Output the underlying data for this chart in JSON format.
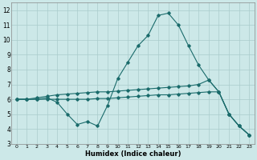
{
  "xlabel": "Humidex (Indice chaleur)",
  "xlim": [
    -0.5,
    23.5
  ],
  "ylim": [
    3,
    12.5
  ],
  "yticks": [
    3,
    4,
    5,
    6,
    7,
    8,
    9,
    10,
    11,
    12
  ],
  "xticks": [
    0,
    1,
    2,
    3,
    4,
    5,
    6,
    7,
    8,
    9,
    10,
    11,
    12,
    13,
    14,
    15,
    16,
    17,
    18,
    19,
    20,
    21,
    22,
    23
  ],
  "background_color": "#cce8e8",
  "grid_color": "#aacccc",
  "line_color": "#1a6b6b",
  "series1_x": [
    0,
    1,
    2,
    3,
    4,
    5,
    6,
    7,
    8,
    9,
    10,
    11,
    12,
    13,
    14,
    15,
    16,
    17,
    18,
    19,
    20,
    21,
    22,
    23
  ],
  "series1_y": [
    6.0,
    6.0,
    6.0,
    6.1,
    5.8,
    5.0,
    4.3,
    4.5,
    4.2,
    5.6,
    7.4,
    8.5,
    9.6,
    10.3,
    11.65,
    11.8,
    11.0,
    9.6,
    8.3,
    7.3,
    6.5,
    5.0,
    4.2,
    3.6
  ],
  "series2_x": [
    0,
    1,
    2,
    3,
    4,
    5,
    6,
    7,
    8,
    9,
    10,
    11,
    12,
    13,
    14,
    15,
    16,
    17,
    18,
    19,
    20,
    21,
    22,
    23
  ],
  "series2_y": [
    6.0,
    6.0,
    6.1,
    6.2,
    6.3,
    6.35,
    6.4,
    6.45,
    6.5,
    6.5,
    6.55,
    6.6,
    6.65,
    6.7,
    6.75,
    6.8,
    6.85,
    6.9,
    7.0,
    7.3,
    6.5,
    5.0,
    4.2,
    3.6
  ],
  "series3_x": [
    0,
    1,
    2,
    3,
    4,
    5,
    6,
    7,
    8,
    9,
    10,
    11,
    12,
    13,
    14,
    15,
    16,
    17,
    18,
    19,
    20,
    21,
    22,
    23
  ],
  "series3_y": [
    6.0,
    6.0,
    6.0,
    6.0,
    6.0,
    6.0,
    6.0,
    6.0,
    6.05,
    6.05,
    6.1,
    6.15,
    6.2,
    6.25,
    6.3,
    6.3,
    6.35,
    6.4,
    6.45,
    6.5,
    6.5,
    5.0,
    4.2,
    3.6
  ]
}
